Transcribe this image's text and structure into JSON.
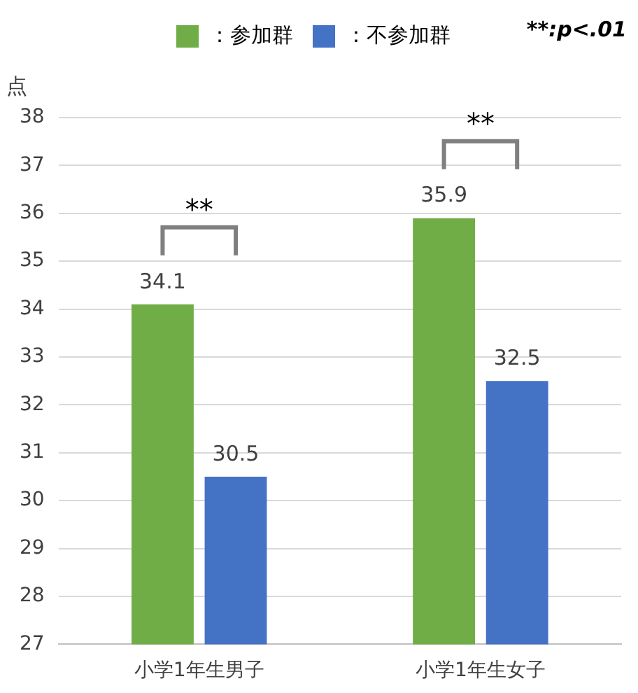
{
  "chart_data": {
    "type": "bar",
    "ylabel": "点",
    "categories": [
      "小学1年生男子",
      "小学1年生女子"
    ],
    "series": [
      {
        "name": "：参加群",
        "color": "#70ad47",
        "values": [
          34.1,
          35.9
        ]
      },
      {
        "name": "：不参加群",
        "color": "#4472c4",
        "values": [
          30.5,
          32.5
        ]
      }
    ],
    "ylim": [
      27,
      38
    ],
    "yticks": [
      27,
      28,
      29,
      30,
      31,
      32,
      33,
      34,
      35,
      36,
      37,
      38
    ],
    "grid": "y",
    "legend": "top",
    "data_labels": true,
    "annotations": [
      "**:p<.01",
      "**",
      "**"
    ]
  }
}
